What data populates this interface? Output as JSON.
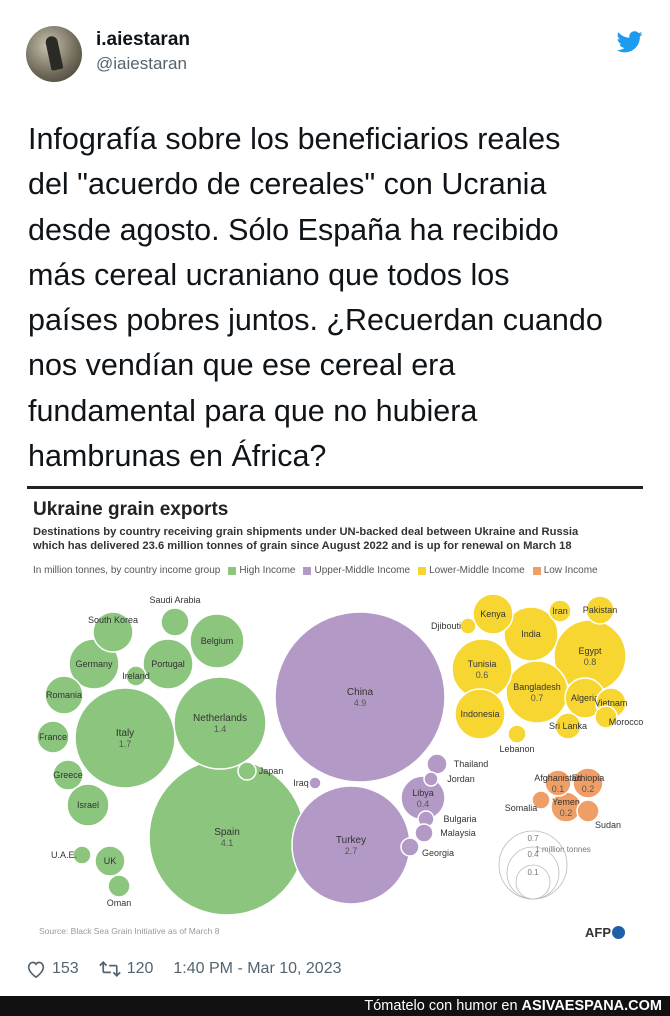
{
  "tweet": {
    "display_name": "i.aiestaran",
    "handle": "@iaiestaran",
    "text": "Infografía sobre los beneficiarios reales\ndel \"acuerdo de cereales\" con Ucrania\ndesde agosto. Sólo España ha recibido\nmás cereal ucraniano que todos los\npaíses pobres juntos. ¿Recuerdan cuando\nnos vendían que ese cereal era\nfundamental para que no hubiera\nhambrunas en África?",
    "likes": "153",
    "retweets": "120",
    "timestamp": "1:40 PM - Mar 10, 2023"
  },
  "colors": {
    "high_income": "#8bc57e",
    "upper_middle": "#b39ac6",
    "lower_middle": "#f7d631",
    "low_income": "#ef9f66",
    "twitter_blue": "#1d9bf0"
  },
  "chart_data": {
    "type": "bubble",
    "title": "Ukraine grain exports",
    "subtitle_line1": "Destinations by country receiving grain shipments under UN-backed deal between Ukraine and Russia",
    "subtitle_line2": "which has delivered 23.6 million tonnes of grain since August 2022 and is up for renewal on March 18",
    "unit_label": "In million tonnes, by country income group",
    "legend": [
      "High Income",
      "Upper-Middle Income",
      "Lower-Middle Income",
      "Low Income"
    ],
    "size_legend_title": "1 million tonnes",
    "size_legend_values": [
      "0.7",
      "0.4",
      "0.1"
    ],
    "source": "Source: Black Sea Grain Initiative as of March 8",
    "brand": "AFP",
    "series": [
      {
        "name": "High Income",
        "countries": [
          {
            "country": "Spain",
            "value": "4.1"
          },
          {
            "country": "Italy",
            "value": "1.7"
          },
          {
            "country": "Netherlands",
            "value": "1.4"
          },
          {
            "country": "Belgium",
            "value": ""
          },
          {
            "country": "Portugal",
            "value": ""
          },
          {
            "country": "Germany",
            "value": ""
          },
          {
            "country": "South Korea",
            "value": ""
          },
          {
            "country": "Saudi Arabia",
            "value": ""
          },
          {
            "country": "Ireland",
            "value": ""
          },
          {
            "country": "Romania",
            "value": ""
          },
          {
            "country": "France",
            "value": ""
          },
          {
            "country": "Greece",
            "value": ""
          },
          {
            "country": "Israel",
            "value": ""
          },
          {
            "country": "U.A.E.",
            "value": ""
          },
          {
            "country": "UK",
            "value": ""
          },
          {
            "country": "Oman",
            "value": ""
          },
          {
            "country": "Japan",
            "value": ""
          }
        ]
      },
      {
        "name": "Upper-Middle Income",
        "countries": [
          {
            "country": "China",
            "value": "4.9"
          },
          {
            "country": "Turkey",
            "value": "2.7"
          },
          {
            "country": "Libya",
            "value": "0.4"
          },
          {
            "country": "Iraq",
            "value": ""
          },
          {
            "country": "Thailand",
            "value": ""
          },
          {
            "country": "Jordan",
            "value": ""
          },
          {
            "country": "Bulgaria",
            "value": ""
          },
          {
            "country": "Malaysia",
            "value": ""
          },
          {
            "country": "Georgia",
            "value": ""
          }
        ]
      },
      {
        "name": "Lower-Middle Income",
        "countries": [
          {
            "country": "Egypt",
            "value": "0.8"
          },
          {
            "country": "Bangladesh",
            "value": "0.7"
          },
          {
            "country": "Tunisia",
            "value": "0.6"
          },
          {
            "country": "India",
            "value": ""
          },
          {
            "country": "Kenya",
            "value": ""
          },
          {
            "country": "Iran",
            "value": ""
          },
          {
            "country": "Pakistan",
            "value": ""
          },
          {
            "country": "Djibouti",
            "value": ""
          },
          {
            "country": "Indonesia",
            "value": ""
          },
          {
            "country": "Algeria",
            "value": ""
          },
          {
            "country": "Vietnam",
            "value": ""
          },
          {
            "country": "Morocco",
            "value": ""
          },
          {
            "country": "Sri Lanka",
            "value": ""
          },
          {
            "country": "Lebanon",
            "value": ""
          }
        ]
      },
      {
        "name": "Low Income",
        "countries": [
          {
            "country": "Ethiopia",
            "value": "0.2"
          },
          {
            "country": "Yemen",
            "value": "0.2"
          },
          {
            "country": "Afghanistan",
            "value": "0.1"
          },
          {
            "country": "Somalia",
            "value": ""
          },
          {
            "country": "Sudan",
            "value": ""
          }
        ]
      }
    ]
  },
  "watermark": {
    "prefix": "Tómatelo con humor en",
    "site": "ASIVAESPANA.COM"
  }
}
